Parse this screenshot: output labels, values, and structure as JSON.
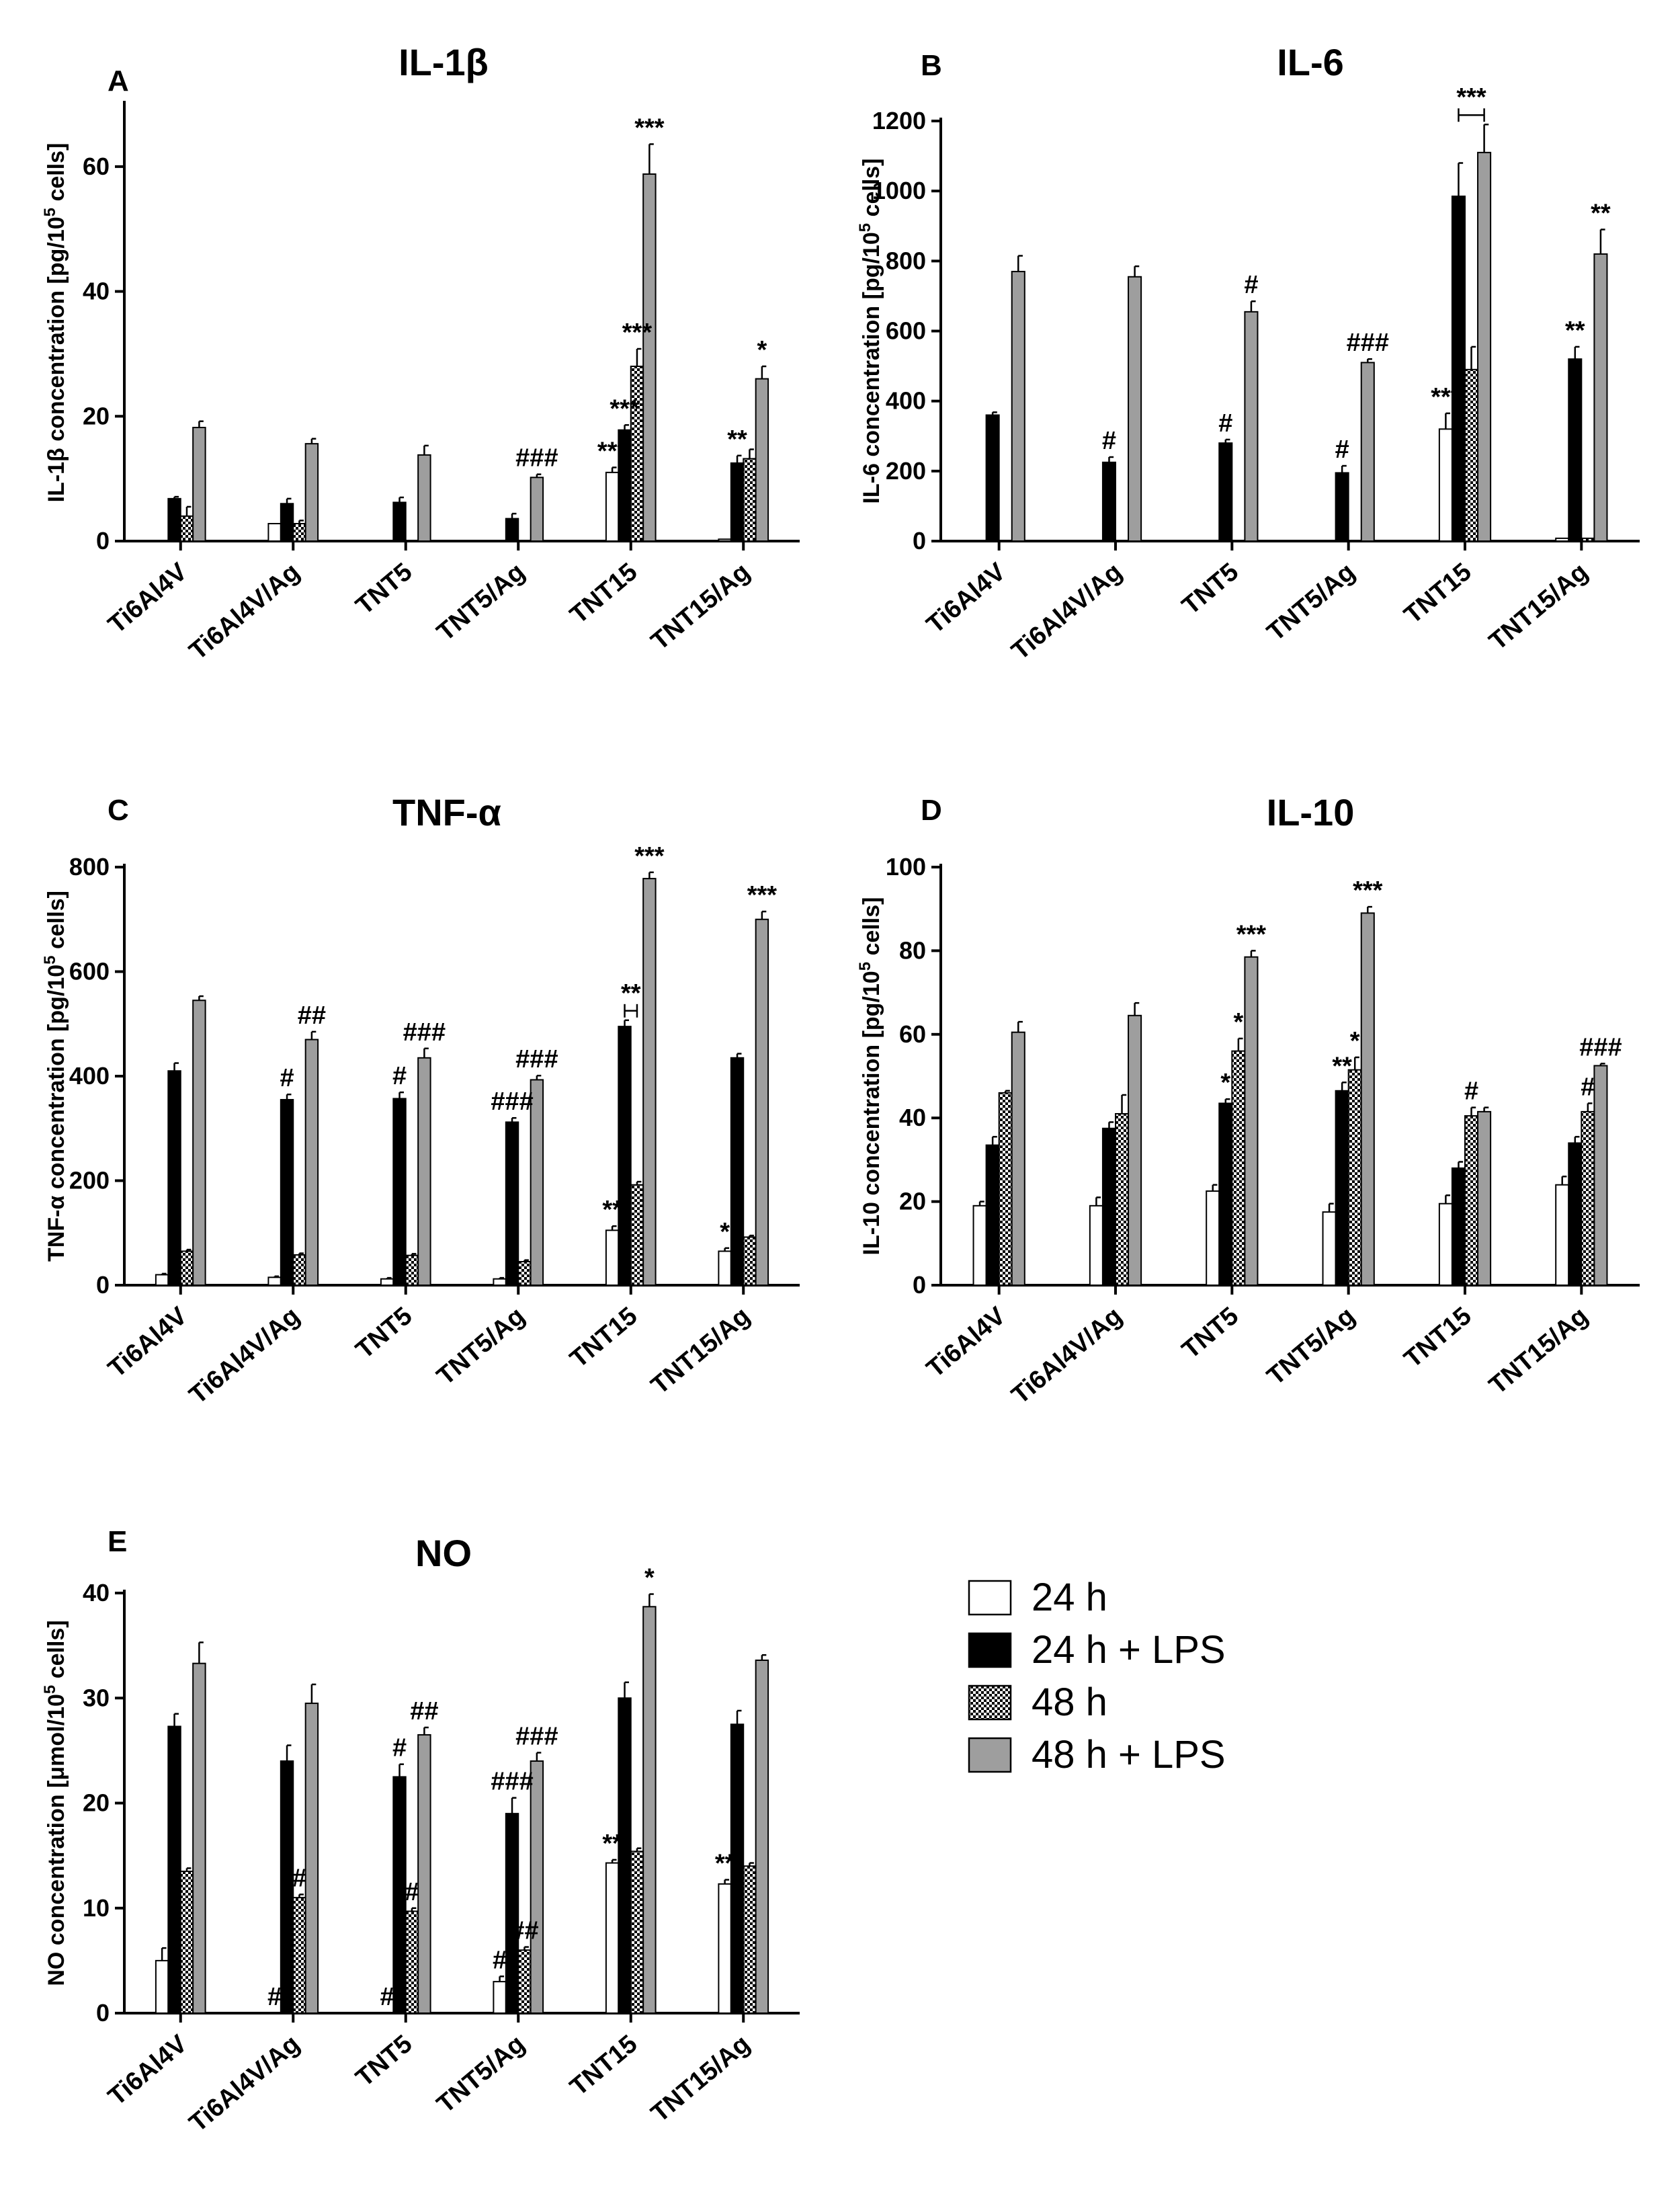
{
  "legend": [
    {
      "name": "24 h",
      "pattern": "white"
    },
    {
      "name": "24 h + LPS",
      "pattern": "black"
    },
    {
      "name": "48 h",
      "pattern": "checker"
    },
    {
      "name": "48 h + LPS",
      "pattern": "gray"
    }
  ],
  "colors": {
    "black": "#000000",
    "gray": "#9e9e9e",
    "white": "#ffffff"
  },
  "chart_data": [
    {
      "type": "bar",
      "letter": "A",
      "title": "IL-1β",
      "ylabel": "IL-1β concentration [pg/10^5 cells]",
      "ylim": [
        0,
        70
      ],
      "yticks": [
        0,
        20,
        40,
        60
      ],
      "categories": [
        "Ti6Al4V",
        "Ti6Al4V/Ag",
        "TNT5",
        "TNT5/Ag",
        "TNT15",
        "TNT15/Ag"
      ],
      "series": [
        {
          "name": "24 h",
          "values": [
            0,
            2.8,
            0,
            0,
            11,
            0.3
          ],
          "errors": [
            0,
            0,
            0,
            0,
            0.8,
            0
          ]
        },
        {
          "name": "24 h + LPS",
          "values": [
            6.8,
            6,
            6.2,
            3.6,
            17.8,
            12.5
          ],
          "errors": [
            0.3,
            0.8,
            0.8,
            0.8,
            0.8,
            1.2
          ]
        },
        {
          "name": "48 h",
          "values": [
            4,
            2.8,
            0,
            0,
            28,
            13.2
          ],
          "errors": [
            1.5,
            0.5,
            0,
            0,
            2.8,
            1.5
          ]
        },
        {
          "name": "48 h + LPS",
          "values": [
            18.2,
            15.6,
            13.8,
            10.2,
            58.8,
            26
          ],
          "errors": [
            1,
            0.8,
            1.5,
            0.5,
            4.8,
            2
          ]
        }
      ],
      "annotations": [
        {
          "category": 3,
          "series": 3,
          "text": "###"
        },
        {
          "category": 4,
          "series": 0,
          "text": "***"
        },
        {
          "category": 4,
          "series": 1,
          "text": "***"
        },
        {
          "category": 4,
          "series": 2,
          "text": "***"
        },
        {
          "category": 4,
          "series": 3,
          "text": "***"
        },
        {
          "category": 5,
          "series": 1,
          "text": "**"
        },
        {
          "category": 5,
          "series": 3,
          "text": "*"
        }
      ]
    },
    {
      "type": "bar",
      "letter": "B",
      "title": "IL-6",
      "ylabel": "IL-6 concentration [pg/10^5 cells]",
      "ylim": [
        0,
        1200
      ],
      "yticks": [
        0,
        200,
        400,
        600,
        800,
        1000,
        1200
      ],
      "categories": [
        "Ti6Al4V",
        "Ti6Al4V/Ag",
        "TNT5",
        "TNT5/Ag",
        "TNT15",
        "TNT15/Ag"
      ],
      "series": [
        {
          "name": "24 h",
          "values": [
            0,
            0,
            0,
            0,
            320,
            8
          ],
          "errors": [
            0,
            0,
            0,
            0,
            45,
            0
          ]
        },
        {
          "name": "24 h + LPS",
          "values": [
            360,
            225,
            280,
            195,
            985,
            520
          ],
          "errors": [
            8,
            15,
            10,
            20,
            95,
            35
          ]
        },
        {
          "name": "48 h",
          "values": [
            0,
            0,
            0,
            0,
            490,
            8
          ],
          "errors": [
            0,
            0,
            0,
            0,
            65,
            0
          ]
        },
        {
          "name": "48 h + LPS",
          "values": [
            770,
            755,
            655,
            510,
            1110,
            820
          ],
          "errors": [
            45,
            30,
            30,
            10,
            80,
            70
          ]
        }
      ],
      "annotations": [
        {
          "category": 1,
          "series": 1,
          "text": "#"
        },
        {
          "category": 2,
          "series": 1,
          "text": "#"
        },
        {
          "category": 2,
          "series": 3,
          "text": "#"
        },
        {
          "category": 3,
          "series": 1,
          "text": "#"
        },
        {
          "category": 3,
          "series": 3,
          "text": "###"
        },
        {
          "category": 4,
          "series": 0,
          "text": "***"
        },
        {
          "category": 4,
          "series": 2,
          "text": "***",
          "bracket": [
            1,
            3
          ]
        },
        {
          "category": 5,
          "series": 1,
          "text": "**"
        },
        {
          "category": 5,
          "series": 3,
          "text": "**"
        }
      ]
    },
    {
      "type": "bar",
      "letter": "C",
      "title": "TNF-α",
      "ylabel": "TNF-α concentration [pg/10^5 cells]",
      "ylim": [
        0,
        800
      ],
      "yticks": [
        0,
        200,
        400,
        600,
        800
      ],
      "categories": [
        "Ti6Al4V",
        "Ti6Al4V/Ag",
        "TNT5",
        "TNT5/Ag",
        "TNT15",
        "TNT15/Ag"
      ],
      "series": [
        {
          "name": "24 h",
          "values": [
            20,
            15,
            12,
            12,
            105,
            65
          ],
          "errors": [
            2,
            2,
            2,
            2,
            8,
            6
          ]
        },
        {
          "name": "24 h + LPS",
          "values": [
            410,
            355,
            357,
            312,
            495,
            435
          ],
          "errors": [
            15,
            10,
            12,
            8,
            12,
            8
          ]
        },
        {
          "name": "48 h",
          "values": [
            65,
            58,
            57,
            45,
            192,
            92
          ],
          "errors": [
            3,
            3,
            3,
            3,
            6,
            3
          ]
        },
        {
          "name": "48 h + LPS",
          "values": [
            545,
            470,
            435,
            393,
            778,
            700
          ],
          "errors": [
            8,
            15,
            18,
            8,
            12,
            15
          ]
        }
      ],
      "annotations": [
        {
          "category": 1,
          "series": 1,
          "text": "#"
        },
        {
          "category": 1,
          "series": 3,
          "text": "##"
        },
        {
          "category": 2,
          "series": 1,
          "text": "#"
        },
        {
          "category": 2,
          "series": 3,
          "text": "###"
        },
        {
          "category": 3,
          "series": 1,
          "text": "###"
        },
        {
          "category": 3,
          "series": 3,
          "text": "###"
        },
        {
          "category": 4,
          "series": 0,
          "text": "**"
        },
        {
          "category": 4,
          "series": 1,
          "text": "**",
          "bracket": [
            1,
            2
          ]
        },
        {
          "category": 4,
          "series": 3,
          "text": "***"
        },
        {
          "category": 5,
          "series": 0,
          "text": "*"
        },
        {
          "category": 5,
          "series": 3,
          "text": "***"
        }
      ]
    },
    {
      "type": "bar",
      "letter": "D",
      "title": "IL-10",
      "ylabel": "IL-10 concentration [pg/10^5 cells]",
      "ylim": [
        0,
        100
      ],
      "yticks": [
        0,
        20,
        40,
        60,
        80,
        100
      ],
      "categories": [
        "Ti6Al4V",
        "Ti6Al4V/Ag",
        "TNT5",
        "TNT5/Ag",
        "TNT15",
        "TNT15/Ag"
      ],
      "series": [
        {
          "name": "24 h",
          "values": [
            19,
            19,
            22.5,
            17.5,
            19.5,
            24
          ],
          "errors": [
            1,
            2,
            1.5,
            2,
            2,
            2
          ]
        },
        {
          "name": "24 h + LPS",
          "values": [
            33.5,
            37.5,
            43.5,
            46.5,
            28,
            34
          ],
          "errors": [
            2,
            1.5,
            1,
            2,
            1.5,
            1.5
          ]
        },
        {
          "name": "48 h",
          "values": [
            46,
            41,
            56,
            51.5,
            40.5,
            41.5
          ],
          "errors": [
            0.5,
            4.5,
            3,
            3,
            2,
            2
          ]
        },
        {
          "name": "48 h + LPS",
          "values": [
            60.5,
            64.5,
            78.5,
            89,
            41.5,
            52.5
          ],
          "errors": [
            2.5,
            3,
            1.5,
            1.5,
            1,
            0.5
          ]
        }
      ],
      "annotations": [
        {
          "category": 2,
          "series": 1,
          "text": "*"
        },
        {
          "category": 2,
          "series": 2,
          "text": "*"
        },
        {
          "category": 2,
          "series": 3,
          "text": "***"
        },
        {
          "category": 3,
          "series": 1,
          "text": "**"
        },
        {
          "category": 3,
          "series": 2,
          "text": "*"
        },
        {
          "category": 3,
          "series": 3,
          "text": "***"
        },
        {
          "category": 4,
          "series": 2,
          "text": "#"
        },
        {
          "category": 5,
          "series": 2,
          "text": "#"
        },
        {
          "category": 5,
          "series": 3,
          "text": "###"
        }
      ]
    },
    {
      "type": "bar",
      "letter": "E",
      "title": "NO",
      "ylabel": "NO concentration [μmol/10^5 cells]",
      "ylim": [
        0,
        40
      ],
      "yticks": [
        0,
        10,
        20,
        30,
        40
      ],
      "categories": [
        "Ti6Al4V",
        "Ti6Al4V/Ag",
        "TNT5",
        "TNT5/Ag",
        "TNT15",
        "TNT15/Ag"
      ],
      "series": [
        {
          "name": "24 h",
          "values": [
            5,
            0,
            0,
            3,
            14.3,
            12.3
          ],
          "errors": [
            1.2,
            0,
            0,
            0.5,
            0.3,
            0.4
          ]
        },
        {
          "name": "24 h + LPS",
          "values": [
            27.3,
            24,
            22.5,
            19,
            30,
            27.5
          ],
          "errors": [
            1.2,
            1.5,
            1.2,
            1.5,
            1.5,
            1.3
          ]
        },
        {
          "name": "48 h",
          "values": [
            13.5,
            11,
            9.7,
            6,
            15.4,
            14
          ],
          "errors": [
            0.3,
            0.3,
            0.3,
            0.3,
            0.3,
            0.3
          ]
        },
        {
          "name": "48 h + LPS",
          "values": [
            33.3,
            29.5,
            26.5,
            24,
            38.7,
            33.6
          ],
          "errors": [
            2,
            1.8,
            0.7,
            0.8,
            1.2,
            0.5
          ]
        }
      ],
      "annotations": [
        {
          "category": 1,
          "series": 0,
          "text": "#"
        },
        {
          "category": 1,
          "series": 2,
          "text": "#"
        },
        {
          "category": 2,
          "series": 0,
          "text": "#"
        },
        {
          "category": 2,
          "series": 1,
          "text": "#"
        },
        {
          "category": 2,
          "series": 2,
          "text": "#"
        },
        {
          "category": 2,
          "series": 3,
          "text": "##"
        },
        {
          "category": 3,
          "series": 0,
          "text": "#"
        },
        {
          "category": 3,
          "series": 1,
          "text": "###"
        },
        {
          "category": 3,
          "series": 2,
          "text": "##"
        },
        {
          "category": 3,
          "series": 3,
          "text": "###"
        },
        {
          "category": 4,
          "series": 0,
          "text": "**"
        },
        {
          "category": 4,
          "series": 3,
          "text": "*"
        },
        {
          "category": 5,
          "series": 0,
          "text": "**"
        }
      ]
    }
  ]
}
